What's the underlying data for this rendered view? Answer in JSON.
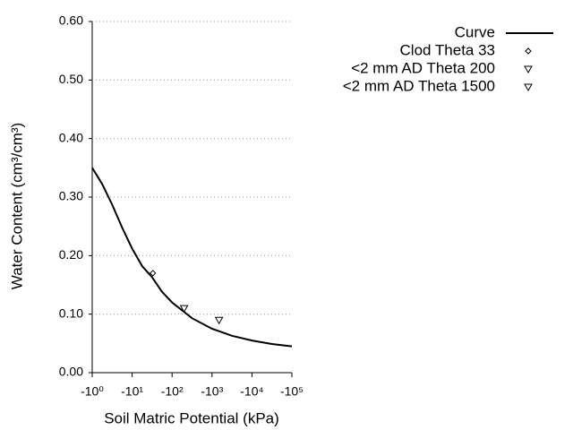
{
  "chart_data": {
    "type": "line",
    "xlabel": "Soil Matric Potential (kPa)",
    "ylabel": "Water Content (cm³/cm³)",
    "xscale": "log",
    "xlim": [
      -1,
      -100000
    ],
    "xticks": [
      {
        "value": -1,
        "label": "-10⁰"
      },
      {
        "value": -10,
        "label": "-10¹"
      },
      {
        "value": -100,
        "label": "-10²"
      },
      {
        "value": -1000,
        "label": "-10³"
      },
      {
        "value": -10000,
        "label": "-10⁴"
      },
      {
        "value": -100000,
        "label": "-10⁵"
      }
    ],
    "ylim": [
      0,
      0.6
    ],
    "yticks": [
      {
        "value": 0,
        "label": "0.00"
      },
      {
        "value": 0.1,
        "label": "0.10"
      },
      {
        "value": 0.2,
        "label": "0.20"
      },
      {
        "value": 0.3,
        "label": "0.30"
      },
      {
        "value": 0.4,
        "label": "0.40"
      },
      {
        "value": 0.5,
        "label": "0.50"
      },
      {
        "value": 0.6,
        "label": "0.60"
      }
    ],
    "grid": true,
    "legend": "top-right",
    "series": [
      {
        "name": "Curve",
        "color": "#000000",
        "style": "line",
        "x": [
          -1,
          -1.78,
          -3.16,
          -5.62,
          -10,
          -17.8,
          -31.6,
          -56.2,
          -100,
          -316,
          -1000,
          -3162,
          -10000,
          -31623,
          -100000
        ],
        "values": [
          0.35,
          0.322,
          0.287,
          0.248,
          0.212,
          0.182,
          0.163,
          0.138,
          0.12,
          0.093,
          0.075,
          0.063,
          0.055,
          0.049,
          0.045
        ]
      },
      {
        "name": "Clod Theta 33",
        "color": "#000000",
        "style": "diamond",
        "x": [
          -33
        ],
        "values": [
          0.17
        ]
      },
      {
        "name": "<2 mm AD Theta 200",
        "color": "#000000",
        "style": "triangle",
        "x": [
          -200
        ],
        "values": [
          0.11
        ]
      },
      {
        "name": "<2 mm AD Theta 1500",
        "color": "#000000",
        "style": "triangle",
        "x": [
          -1500
        ],
        "values": [
          0.09
        ]
      }
    ]
  }
}
